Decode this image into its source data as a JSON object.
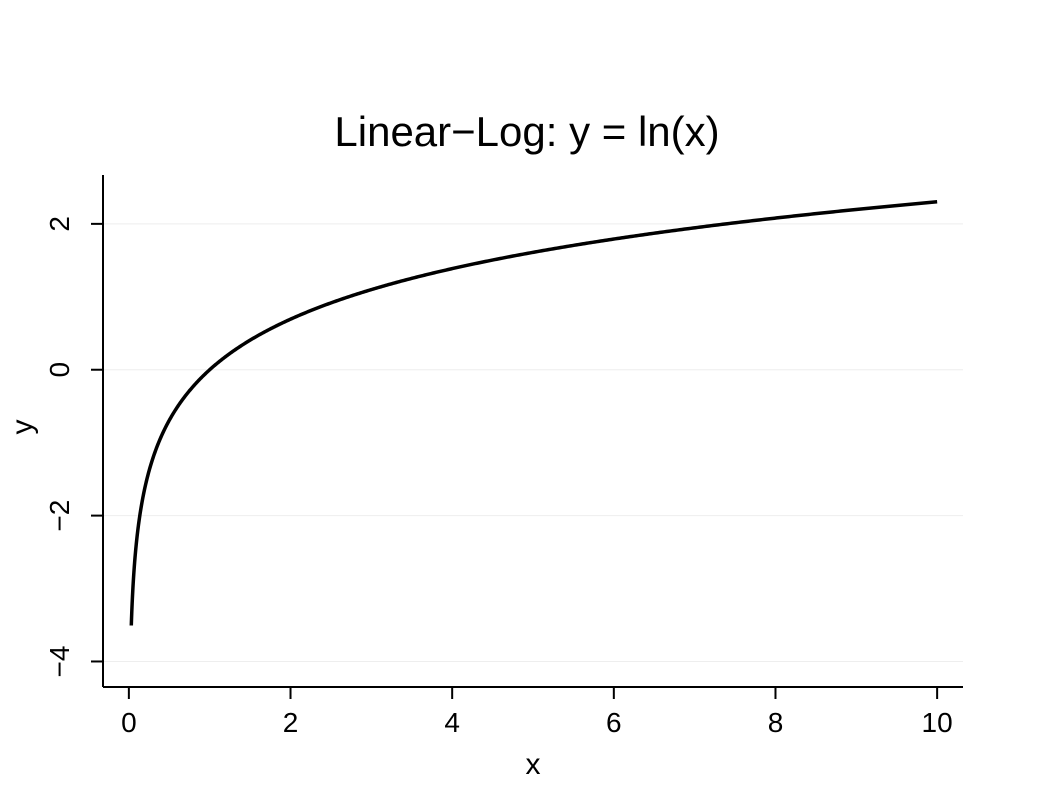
{
  "chart_data": {
    "type": "line",
    "title": "Linear−Log: y = ln(x)",
    "xlabel": "x",
    "ylabel": "y",
    "xlim": [
      -0.32,
      10.32
    ],
    "ylim": [
      -4.35,
      2.67
    ],
    "x_ticks": [
      0,
      2,
      4,
      6,
      8,
      10
    ],
    "x_tick_labels": [
      "0",
      "2",
      "4",
      "6",
      "8",
      "10"
    ],
    "y_ticks": [
      -4,
      -2,
      0,
      2
    ],
    "y_tick_labels": [
      "−4",
      "−2",
      "0",
      "2"
    ],
    "grid": true,
    "legend": "none",
    "series": [
      {
        "function": "ln(x)",
        "x_range": [
          0.03,
          10
        ],
        "x": [
          0.03,
          0.05,
          0.1,
          0.2,
          0.3,
          0.5,
          0.75,
          1,
          1.5,
          2,
          3,
          4,
          5,
          6,
          7,
          8,
          9,
          10
        ],
        "values": [
          -3.51,
          -3.0,
          -2.3,
          -1.61,
          -1.2,
          -0.69,
          -0.29,
          0,
          0.41,
          0.69,
          1.1,
          1.39,
          1.61,
          1.79,
          1.95,
          2.08,
          2.2,
          2.3
        ]
      }
    ]
  },
  "colors": {
    "line": "#000000",
    "grid": "#eeeeee",
    "background": "#ffffff"
  }
}
